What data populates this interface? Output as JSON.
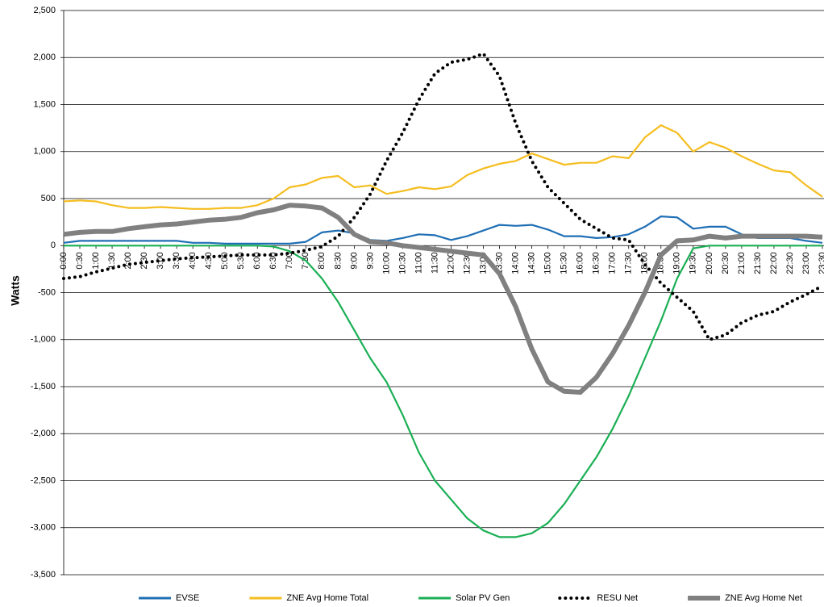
{
  "chart_data": {
    "type": "line",
    "y_label": "Watts",
    "categories": [
      "0:00",
      "0:30",
      "1:00",
      "1:30",
      "2:00",
      "2:30",
      "3:00",
      "3:30",
      "4:00",
      "4:30",
      "5:00",
      "5:30",
      "6:00",
      "6:30",
      "7:00",
      "7:30",
      "8:00",
      "8:30",
      "9:00",
      "9:30",
      "10:00",
      "10:30",
      "11:00",
      "11:30",
      "12:00",
      "12:30",
      "13:00",
      "13:30",
      "14:00",
      "14:30",
      "15:00",
      "15:30",
      "16:00",
      "16:30",
      "17:00",
      "17:30",
      "18:00",
      "18:30",
      "19:00",
      "19:30",
      "20:00",
      "20:30",
      "21:00",
      "21:30",
      "22:00",
      "22:30",
      "23:00",
      "23:30"
    ],
    "series": [
      {
        "name": "EVSE",
        "color": "#1f6fb5",
        "values": [
          30,
          50,
          50,
          50,
          50,
          50,
          50,
          50,
          30,
          30,
          20,
          20,
          20,
          20,
          20,
          40,
          140,
          160,
          130,
          60,
          50,
          80,
          120,
          110,
          60,
          100,
          160,
          220,
          210,
          220,
          170,
          100,
          100,
          80,
          90,
          120,
          200,
          310,
          300,
          180,
          200,
          200,
          120,
          80,
          80,
          80,
          50,
          30
        ]
      },
      {
        "name": "ZNE Avg Home Total",
        "color": "#f5bd1f",
        "values": [
          470,
          480,
          470,
          430,
          400,
          400,
          410,
          400,
          390,
          390,
          400,
          400,
          430,
          500,
          620,
          650,
          720,
          740,
          620,
          640,
          550,
          580,
          620,
          600,
          630,
          750,
          820,
          870,
          900,
          980,
          920,
          860,
          880,
          880,
          950,
          930,
          1150,
          1280,
          1200,
          1000,
          1100,
          1040,
          950,
          870,
          800,
          780,
          640,
          520
        ]
      },
      {
        "name": "Solar PV Gen",
        "color": "#1aaf54",
        "values": [
          0,
          0,
          0,
          0,
          0,
          0,
          0,
          0,
          0,
          0,
          0,
          0,
          0,
          -10,
          -60,
          -160,
          -350,
          -600,
          -900,
          -1200,
          -1450,
          -1800,
          -2200,
          -2500,
          -2700,
          -2900,
          -3030,
          -3100,
          -3100,
          -3060,
          -2950,
          -2750,
          -2500,
          -2250,
          -1950,
          -1600,
          -1200,
          -800,
          -350,
          -30,
          0,
          0,
          0,
          0,
          0,
          0,
          0,
          0
        ]
      },
      {
        "name": "RESU Net",
        "color": "#000000",
        "style": "dotted",
        "values": [
          -350,
          -330,
          -280,
          -240,
          -200,
          -180,
          -160,
          -140,
          -130,
          -120,
          -110,
          -100,
          -100,
          -100,
          -80,
          -50,
          -10,
          100,
          300,
          550,
          900,
          1200,
          1550,
          1830,
          1950,
          1980,
          2040,
          1800,
          1300,
          900,
          620,
          450,
          280,
          180,
          80,
          60,
          -200,
          -400,
          -550,
          -700,
          -1000,
          -950,
          -820,
          -740,
          -700,
          -600,
          -520,
          -430
        ]
      },
      {
        "name": "ZNE Avg Home Net",
        "color": "#808080",
        "style": "thick",
        "values": [
          120,
          140,
          150,
          150,
          180,
          200,
          220,
          230,
          250,
          270,
          280,
          300,
          350,
          380,
          430,
          420,
          400,
          300,
          120,
          40,
          30,
          0,
          -20,
          -40,
          -60,
          -80,
          -100,
          -300,
          -650,
          -1100,
          -1450,
          -1550,
          -1560,
          -1400,
          -1150,
          -850,
          -500,
          -100,
          50,
          60,
          100,
          80,
          100,
          100,
          100,
          100,
          100,
          90
        ]
      }
    ],
    "ylim": [
      -3500,
      2500
    ],
    "yticks": [
      {
        "value": -3500,
        "label": "-3,500"
      },
      {
        "value": -3000,
        "label": "-3,000"
      },
      {
        "value": -2500,
        "label": "-2,500"
      },
      {
        "value": -2000,
        "label": "-2,000"
      },
      {
        "value": -1500,
        "label": "-1,500"
      },
      {
        "value": -1000,
        "label": "-1,000"
      },
      -500,
      0,
      500,
      {
        "value": 1000,
        "label": "1,000"
      },
      {
        "value": 1500,
        "label": "1,500"
      },
      {
        "value": 2000,
        "label": "2,000"
      },
      {
        "value": 2500,
        "label": "2,500"
      }
    ],
    "grid": true,
    "legend": "bottom"
  }
}
